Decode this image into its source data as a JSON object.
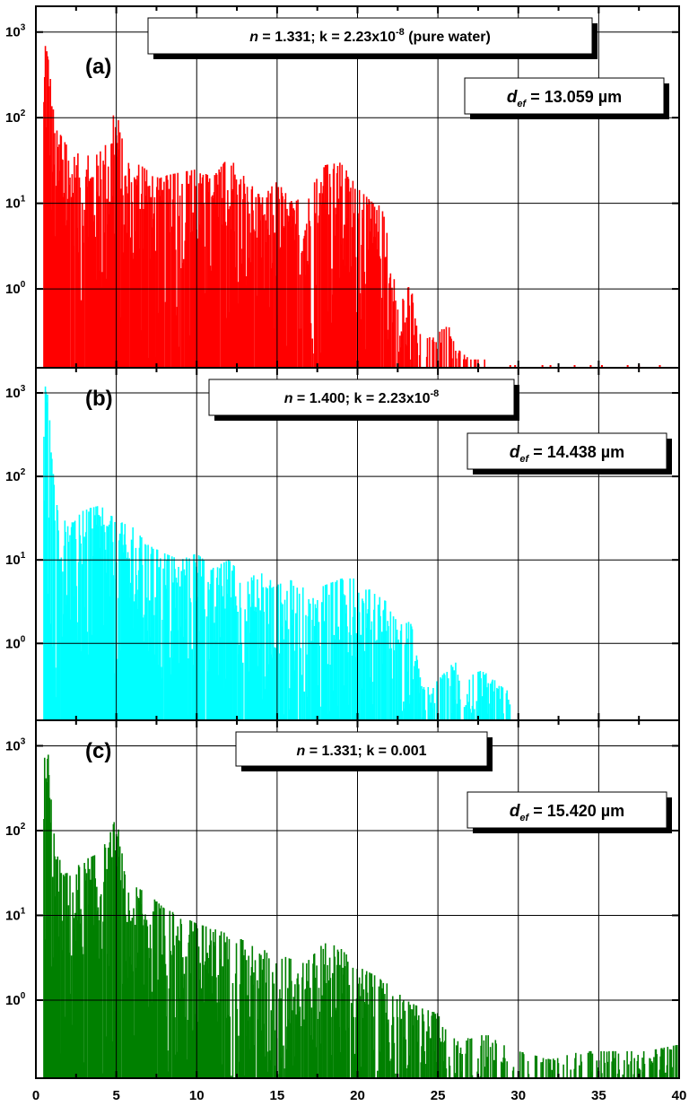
{
  "chart_data": [
    {
      "type": "bar",
      "panel_label": "(a)",
      "color": "#ff0000",
      "annotation": {
        "n_label": "n",
        "n_text": " = 1.331; k = 2.23x10",
        "exp": "-8",
        "suffix": " (pure water)"
      },
      "def": {
        "symbol": "d",
        "sub": "ef",
        "text": " = 13.059 ",
        "unit": "µm"
      },
      "ylim": [
        0.12,
        2000
      ],
      "yscale": "log",
      "y_ticks": [
        {
          "base": "10",
          "exp": "3"
        },
        {
          "base": "10",
          "exp": "2"
        },
        {
          "base": "10",
          "exp": "1"
        },
        {
          "base": "10",
          "exp": "0"
        }
      ],
      "envelope": [
        {
          "x": 0.5,
          "y": 300
        },
        {
          "x": 0.6,
          "y": 1500
        },
        {
          "x": 0.8,
          "y": 600
        },
        {
          "x": 1.2,
          "y": 80
        },
        {
          "x": 2.0,
          "y": 45
        },
        {
          "x": 3.0,
          "y": 35
        },
        {
          "x": 4.0,
          "y": 40
        },
        {
          "x": 4.6,
          "y": 70
        },
        {
          "x": 5.0,
          "y": 150
        },
        {
          "x": 5.6,
          "y": 30
        },
        {
          "x": 6.5,
          "y": 28
        },
        {
          "x": 7.5,
          "y": 20
        },
        {
          "x": 8.5,
          "y": 22
        },
        {
          "x": 10.0,
          "y": 25
        },
        {
          "x": 11.0,
          "y": 20
        },
        {
          "x": 12.0,
          "y": 35
        },
        {
          "x": 13.0,
          "y": 20
        },
        {
          "x": 14.0,
          "y": 12
        },
        {
          "x": 15.0,
          "y": 18
        },
        {
          "x": 16.0,
          "y": 10
        },
        {
          "x": 17.0,
          "y": 14
        },
        {
          "x": 18.0,
          "y": 28
        },
        {
          "x": 19.0,
          "y": 30
        },
        {
          "x": 20.0,
          "y": 15
        },
        {
          "x": 21.0,
          "y": 10
        },
        {
          "x": 21.5,
          "y": 10
        },
        {
          "x": 22.0,
          "y": 3
        },
        {
          "x": 22.6,
          "y": 0.5
        },
        {
          "x": 23.2,
          "y": 1.6
        },
        {
          "x": 23.6,
          "y": 0.5
        },
        {
          "x": 24.0,
          "y": 0.25
        },
        {
          "x": 25.0,
          "y": 0.3
        },
        {
          "x": 25.6,
          "y": 0.4
        },
        {
          "x": 26.2,
          "y": 0.2
        },
        {
          "x": 27.0,
          "y": 0.15
        },
        {
          "x": 28.0,
          "y": 0.15
        }
      ],
      "tail_x": [
        29.5,
        29.8,
        31.5,
        32,
        33.5,
        34.5,
        35.2,
        36.8,
        37.5,
        38.8
      ]
    },
    {
      "type": "bar",
      "panel_label": "(b)",
      "color": "#00ffff",
      "annotation": {
        "n_label": "n",
        "n_text": " = 1.400; k = 2.23x10",
        "exp": "-8",
        "suffix": ""
      },
      "def": {
        "symbol": "d",
        "sub": "ef",
        "text": " = 14.438 ",
        "unit": "µm"
      },
      "ylim": [
        0.12,
        2000
      ],
      "yscale": "log",
      "y_ticks": [
        {
          "base": "10",
          "exp": "3"
        },
        {
          "base": "10",
          "exp": "2"
        },
        {
          "base": "10",
          "exp": "1"
        },
        {
          "base": "10",
          "exp": "0"
        }
      ],
      "envelope": [
        {
          "x": 0.5,
          "y": 400
        },
        {
          "x": 0.6,
          "y": 1600
        },
        {
          "x": 0.8,
          "y": 700
        },
        {
          "x": 1.2,
          "y": 50
        },
        {
          "x": 2.0,
          "y": 25
        },
        {
          "x": 3.0,
          "y": 40
        },
        {
          "x": 4.0,
          "y": 45
        },
        {
          "x": 5.0,
          "y": 30
        },
        {
          "x": 6.0,
          "y": 25
        },
        {
          "x": 7.0,
          "y": 15
        },
        {
          "x": 8.0,
          "y": 12
        },
        {
          "x": 9.0,
          "y": 10
        },
        {
          "x": 10.0,
          "y": 12
        },
        {
          "x": 11.0,
          "y": 8
        },
        {
          "x": 12.0,
          "y": 10
        },
        {
          "x": 13.0,
          "y": 6
        },
        {
          "x": 14.0,
          "y": 7
        },
        {
          "x": 15.0,
          "y": 5
        },
        {
          "x": 16.0,
          "y": 6
        },
        {
          "x": 17.0,
          "y": 4
        },
        {
          "x": 18.0,
          "y": 5
        },
        {
          "x": 19.0,
          "y": 6
        },
        {
          "x": 20.0,
          "y": 6
        },
        {
          "x": 21.0,
          "y": 4
        },
        {
          "x": 22.0,
          "y": 3
        },
        {
          "x": 22.6,
          "y": 1.5
        },
        {
          "x": 23.0,
          "y": 2.8
        },
        {
          "x": 23.4,
          "y": 1.5
        },
        {
          "x": 24.0,
          "y": 0.3
        },
        {
          "x": 24.6,
          "y": 0.3
        },
        {
          "x": 25.2,
          "y": 0.4
        },
        {
          "x": 26.0,
          "y": 0.6
        },
        {
          "x": 27.0,
          "y": 0.5
        },
        {
          "x": 28.0,
          "y": 0.45
        },
        {
          "x": 29.0,
          "y": 0.3
        },
        {
          "x": 29.6,
          "y": 0.25
        }
      ],
      "tail_x": []
    },
    {
      "type": "bar",
      "panel_label": "(c)",
      "color": "#008000",
      "annotation": {
        "n_label": "n",
        "n_text": " = 1.331; k = 0.001",
        "exp": "",
        "suffix": ""
      },
      "def": {
        "symbol": "d",
        "sub": "ef",
        "text": " = 15.420 ",
        "unit": "µm"
      },
      "ylim": [
        0.12,
        2000
      ],
      "yscale": "log",
      "y_ticks": [
        {
          "base": "10",
          "exp": "3"
        },
        {
          "base": "10",
          "exp": "2"
        },
        {
          "base": "10",
          "exp": "1"
        },
        {
          "base": "10",
          "exp": "0"
        }
      ],
      "envelope": [
        {
          "x": 0.5,
          "y": 500
        },
        {
          "x": 0.6,
          "y": 1500
        },
        {
          "x": 0.8,
          "y": 700
        },
        {
          "x": 1.2,
          "y": 60
        },
        {
          "x": 2.0,
          "y": 30
        },
        {
          "x": 3.0,
          "y": 45
        },
        {
          "x": 4.0,
          "y": 55
        },
        {
          "x": 4.6,
          "y": 90
        },
        {
          "x": 5.0,
          "y": 170
        },
        {
          "x": 5.6,
          "y": 25
        },
        {
          "x": 7.0,
          "y": 18
        },
        {
          "x": 8.0,
          "y": 12
        },
        {
          "x": 9.0,
          "y": 10
        },
        {
          "x": 10.0,
          "y": 8
        },
        {
          "x": 11.0,
          "y": 7
        },
        {
          "x": 12.0,
          "y": 6
        },
        {
          "x": 13.0,
          "y": 5
        },
        {
          "x": 14.0,
          "y": 4
        },
        {
          "x": 15.0,
          "y": 3.5
        },
        {
          "x": 16.0,
          "y": 3
        },
        {
          "x": 17.0,
          "y": 3
        },
        {
          "x": 18.0,
          "y": 5
        },
        {
          "x": 19.0,
          "y": 4
        },
        {
          "x": 20.0,
          "y": 2.5
        },
        {
          "x": 21.0,
          "y": 2
        },
        {
          "x": 22.0,
          "y": 1.5
        },
        {
          "x": 23.0,
          "y": 1
        },
        {
          "x": 24.0,
          "y": 0.8
        },
        {
          "x": 25.0,
          "y": 0.7
        },
        {
          "x": 26.0,
          "y": 0.4
        },
        {
          "x": 27.0,
          "y": 0.35
        },
        {
          "x": 28.0,
          "y": 0.4
        },
        {
          "x": 29.0,
          "y": 0.3
        },
        {
          "x": 30.0,
          "y": 0.25
        },
        {
          "x": 32.0,
          "y": 0.2
        },
        {
          "x": 34.0,
          "y": 0.25
        },
        {
          "x": 36.0,
          "y": 0.25
        },
        {
          "x": 38.0,
          "y": 0.25
        },
        {
          "x": 40.0,
          "y": 0.3
        }
      ],
      "tail_x": []
    }
  ],
  "x_axis": {
    "ticks": [
      "0",
      "5",
      "10",
      "15",
      "20",
      "25",
      "30",
      "35",
      "40"
    ],
    "xlim": [
      0,
      40
    ]
  }
}
